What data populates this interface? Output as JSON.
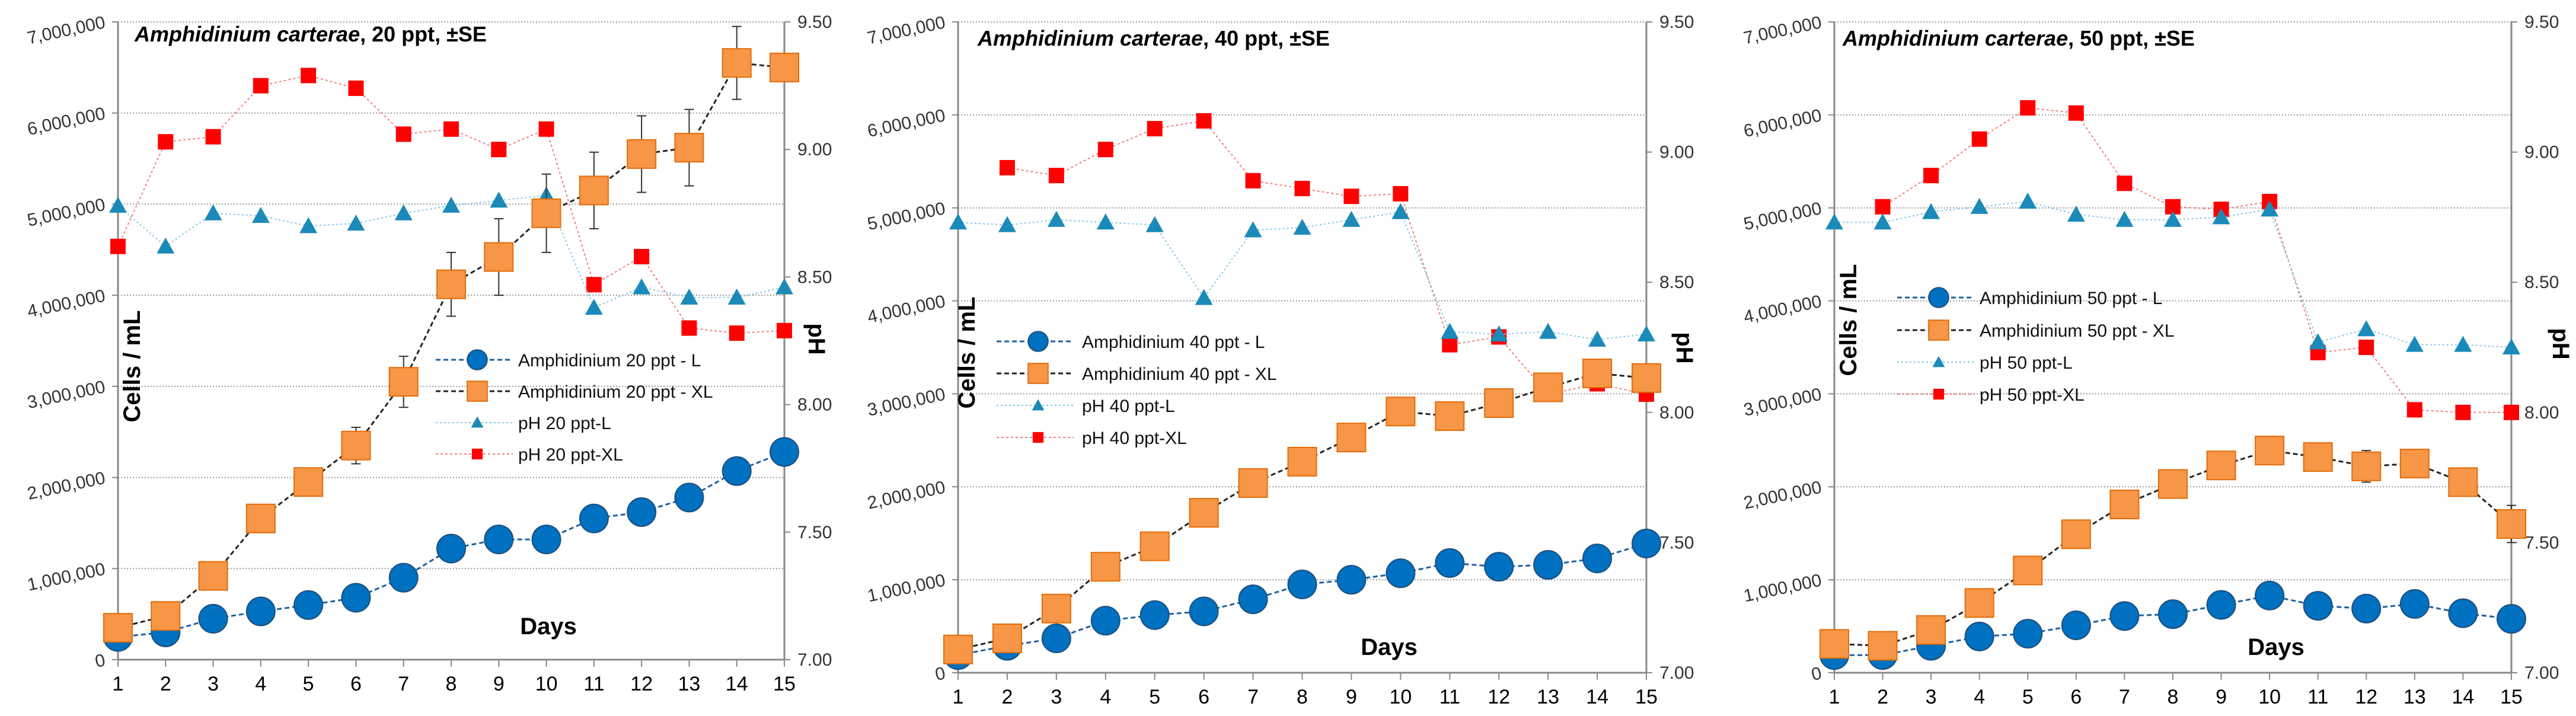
{
  "chart_data": [
    {
      "type": "line",
      "title_species": "Amphidinium carterae",
      "title_rest": ", 20 ppt, ±SE",
      "xlabel": "Days",
      "ylabel": "Cells / mL",
      "y2label": "pH",
      "x": [
        1,
        2,
        3,
        4,
        5,
        6,
        7,
        8,
        9,
        10,
        11,
        12,
        13,
        14,
        15
      ],
      "ylim": [
        0,
        7000000
      ],
      "y_ticks": [
        "0",
        "1,000,000",
        "2,000,000",
        "3,000,000",
        "4,000,000",
        "5,000,000",
        "6,000,000",
        "7,000,000"
      ],
      "y2lim": [
        7.0,
        9.5
      ],
      "y2_ticks": [
        "7.00",
        "7.50",
        "8.00",
        "8.50",
        "9.00",
        "9.50"
      ],
      "grid": true,
      "series": [
        {
          "name": "Amphidinium 20 ppt - L",
          "axis": "left",
          "color": "#0070C0",
          "values": [
            250000,
            300000,
            450000,
            530000,
            600000,
            680000,
            900000,
            1220000,
            1320000,
            1320000,
            1550000,
            1620000,
            1780000,
            2070000,
            2280000
          ]
        },
        {
          "name": "Amphidinium 20 ppt - XL",
          "axis": "left",
          "color": "#F79646",
          "values": [
            350000,
            480000,
            920000,
            1550000,
            1950000,
            2350000,
            3050000,
            4120000,
            4420000,
            4900000,
            5150000,
            5550000,
            5620000,
            6550000,
            6500000
          ],
          "se": [
            null,
            null,
            null,
            null,
            null,
            200000,
            280000,
            350000,
            420000,
            430000,
            420000,
            420000,
            420000,
            400000,
            null
          ]
        },
        {
          "name": "pH 20 ppt-L",
          "axis": "right",
          "color": "#1F8FC0",
          "values": [
            8.78,
            8.62,
            8.75,
            8.74,
            8.7,
            8.71,
            8.75,
            8.78,
            8.8,
            8.82,
            8.38,
            8.46,
            8.42,
            8.42,
            8.46
          ]
        },
        {
          "name": "pH 20 ppt-XL",
          "axis": "right",
          "color": "#FF0000",
          "values": [
            8.62,
            9.03,
            9.05,
            9.25,
            9.29,
            9.24,
            9.06,
            9.08,
            9.0,
            9.08,
            8.47,
            8.58,
            8.3,
            8.28,
            8.29
          ]
        }
      ]
    },
    {
      "type": "line",
      "title_species": "Amphidinium carterae",
      "title_rest": ", 40 ppt, ±SE",
      "xlabel": "Days",
      "ylabel": "Cells / mL",
      "y2label": "pH",
      "x": [
        1,
        2,
        3,
        4,
        5,
        6,
        7,
        8,
        9,
        10,
        11,
        12,
        13,
        14,
        15
      ],
      "ylim": [
        0,
        7000000
      ],
      "y_ticks": [
        "0",
        "1,000,000",
        "2,000,000",
        "3,000,000",
        "4,000,000",
        "5,000,000",
        "6,000,000",
        "7,000,000"
      ],
      "y2lim": [
        7.0,
        9.5
      ],
      "y2_ticks": [
        "7.00",
        "7.50",
        "8.00",
        "8.50",
        "9.00",
        "9.50"
      ],
      "grid": true,
      "series": [
        {
          "name": "Amphidinium 40 ppt - L",
          "axis": "left",
          "color": "#0070C0",
          "values": [
            190000,
            290000,
            370000,
            560000,
            620000,
            660000,
            790000,
            950000,
            1000000,
            1070000,
            1180000,
            1140000,
            1160000,
            1230000,
            1390000
          ]
        },
        {
          "name": "Amphidinium 40 ppt - XL",
          "axis": "left",
          "color": "#F79646",
          "values": [
            250000,
            370000,
            690000,
            1140000,
            1360000,
            1720000,
            2040000,
            2270000,
            2530000,
            2810000,
            2760000,
            2900000,
            3070000,
            3220000,
            3170000
          ]
        },
        {
          "name": "pH 40 ppt-L",
          "axis": "right",
          "color": "#1F8FC0",
          "values": [
            8.73,
            8.72,
            8.74,
            8.73,
            8.72,
            8.44,
            8.7,
            8.71,
            8.74,
            8.77,
            8.31,
            8.3,
            8.31,
            8.28,
            8.3
          ]
        },
        {
          "name": "pH 40 ppt-XL",
          "axis": "right",
          "color": "#FF0000",
          "values": [
            null,
            8.94,
            8.91,
            9.01,
            9.09,
            9.12,
            8.89,
            8.86,
            8.83,
            8.84,
            8.26,
            8.29,
            8.07,
            8.11,
            8.07
          ]
        }
      ]
    },
    {
      "type": "line",
      "title_species": "Amphidinium carterae",
      "title_rest": ", 50 ppt, ±SE",
      "xlabel": "Days",
      "ylabel": "Cells / mL",
      "y2label": "pH",
      "x": [
        1,
        2,
        3,
        4,
        5,
        6,
        7,
        8,
        9,
        10,
        11,
        12,
        13,
        14,
        15
      ],
      "ylim": [
        0,
        7000000
      ],
      "y_ticks": [
        "0",
        "1,000,000",
        "2,000,000",
        "3,000,000",
        "4,000,000",
        "5,000,000",
        "6,000,000",
        "7,000,000"
      ],
      "y2lim": [
        7.0,
        9.5
      ],
      "y2_ticks": [
        "7.00",
        "7.50",
        "8.00",
        "8.50",
        "9.00",
        "9.50"
      ],
      "grid": true,
      "series": [
        {
          "name": "Amphidinium 50 ppt - L",
          "axis": "left",
          "color": "#0070C0",
          "values": [
            190000,
            190000,
            290000,
            390000,
            420000,
            510000,
            610000,
            630000,
            730000,
            830000,
            720000,
            690000,
            740000,
            640000,
            580000
          ]
        },
        {
          "name": "Amphidinium 50 ppt - XL",
          "axis": "left",
          "color": "#F79646",
          "values": [
            310000,
            290000,
            460000,
            750000,
            1100000,
            1490000,
            1810000,
            2030000,
            2230000,
            2390000,
            2320000,
            2220000,
            2250000,
            2050000,
            1600000
          ],
          "se": [
            null,
            null,
            null,
            null,
            null,
            null,
            null,
            null,
            null,
            null,
            null,
            170000,
            140000,
            null,
            200000
          ]
        },
        {
          "name": "pH 50 ppt-L",
          "axis": "right",
          "color": "#1F8FC0",
          "values": [
            8.73,
            8.73,
            8.77,
            8.79,
            8.81,
            8.76,
            8.74,
            8.74,
            8.75,
            8.78,
            8.27,
            8.32,
            8.26,
            8.26,
            8.25
          ]
        },
        {
          "name": "pH 50 ppt-XL",
          "axis": "right",
          "color": "#FF0000",
          "values": [
            null,
            8.79,
            8.91,
            9.05,
            9.17,
            9.15,
            8.88,
            8.79,
            8.78,
            8.81,
            8.23,
            8.25,
            8.01,
            8.0,
            8.0
          ]
        }
      ]
    }
  ]
}
